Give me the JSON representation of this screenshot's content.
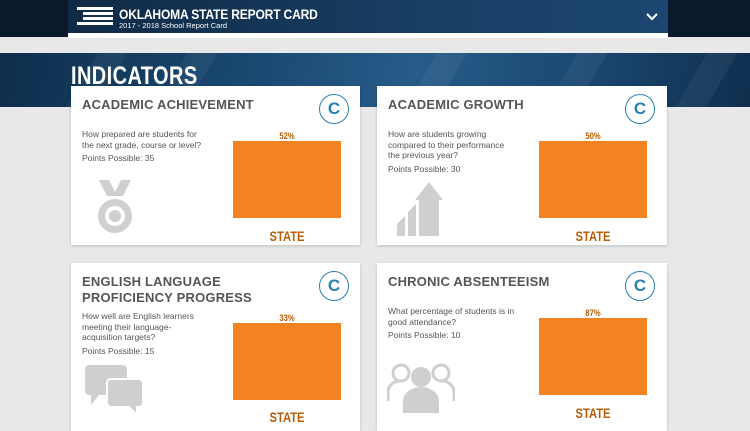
{
  "header": {
    "title": "OKLAHOMA STATE REPORT CARD",
    "subtitle": "2017 - 2018 School Report Card",
    "menu_icon": "chevron-down-icon"
  },
  "section_title": "INDICATORS",
  "cards": [
    {
      "title": "ACADEMIC ACHIEVEMENT",
      "grade": "C",
      "question": "How prepared are students for the next grade, course or level?",
      "points": "Points Possible: 35",
      "bar_value_label": "52%",
      "bar_value": 52,
      "bar_caption": "STATE",
      "icon": "medal-icon"
    },
    {
      "title": "ACADEMIC GROWTH",
      "grade": "C",
      "question": "How are students growing compared to their performance the previous year?",
      "points": "Points Possible: 30",
      "bar_value_label": "50%",
      "bar_value": 50,
      "bar_caption": "STATE",
      "icon": "growth-arrow-icon"
    },
    {
      "title": "ENGLISH LANGUAGE PROFICIENCY PROGRESS",
      "grade": "C",
      "question": "How well are English learners meeting their language-acquisition targets?",
      "points": "Points Possible: 15",
      "bar_value_label": "33%",
      "bar_value": 33,
      "bar_caption": "STATE",
      "icon": "speech-bubbles-icon"
    },
    {
      "title": "CHRONIC ABSENTEEISM",
      "grade": "C",
      "question": "What percentage of students is in good attendance?",
      "points": "Points Possible: 10",
      "bar_value_label": "87%",
      "bar_value": 87,
      "bar_caption": "STATE",
      "icon": "people-group-icon"
    }
  ],
  "colors": {
    "bar": "#f38220",
    "accent_text": "#b85d06",
    "grade_blue": "#2a7fb5",
    "header_navy": "#0f2b46"
  }
}
